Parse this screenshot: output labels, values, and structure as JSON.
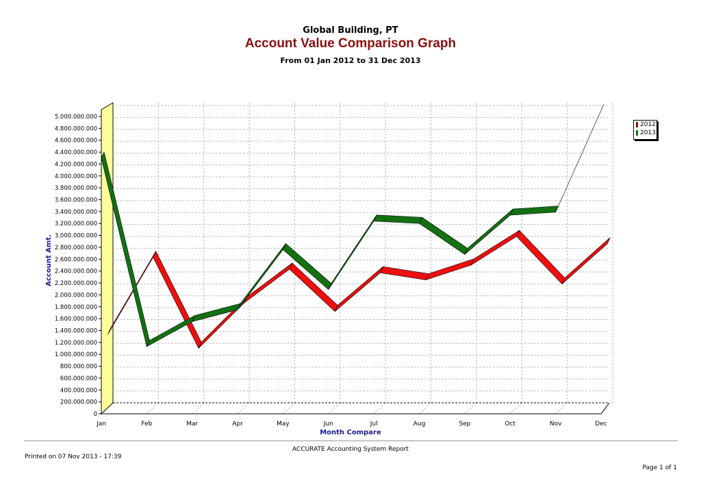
{
  "report": {
    "company": "Global Building, PT",
    "title": "Account Value Comparison Graph",
    "subtitle": "From 01 Jan 2012 to 31 Dec 2013",
    "footer_center": "ACCURATE Accounting System Report",
    "printed": "Printed on 07 Nov 2013 - 17:39",
    "page": "Page 1 of 1"
  },
  "chart_data": {
    "type": "line",
    "title": "Account Value Comparison Graph",
    "xlabel": "Month Compare",
    "ylabel": "Account Amt.",
    "categories": [
      "Jan",
      "Feb",
      "Mar",
      "Apr",
      "May",
      "Jun",
      "Jul",
      "Aug",
      "Sep",
      "Oct",
      "Nov",
      "Dec"
    ],
    "ylim": [
      0,
      5000000000
    ],
    "yticks": [
      0,
      200000000,
      400000000,
      600000000,
      800000000,
      1000000000,
      1200000000,
      1400000000,
      1600000000,
      1800000000,
      2000000000,
      2200000000,
      2400000000,
      2600000000,
      2800000000,
      3000000000,
      3200000000,
      3400000000,
      3600000000,
      3800000000,
      4000000000,
      4200000000,
      4400000000,
      4600000000,
      4800000000,
      5000000000
    ],
    "ytick_labels": [
      "0",
      "200.000.000",
      "400.000.000",
      "600.000.000",
      "800.000.000",
      "1.000.000.000",
      "1.200.000.000",
      "1.400.000.000",
      "1.600.000.000",
      "1.800.000.000",
      "2.000.000.000",
      "2.200.000.000",
      "2.400.000.000",
      "2.600.000.000",
      "2.800.000.000",
      "3.000.000.000",
      "3.200.000.000",
      "3.400.000.000",
      "3.600.000.000",
      "3.800.000.000",
      "4.000.000.000",
      "4.200.000.000",
      "4.400.000.000",
      "4.600.000.000",
      "4.800.000.000",
      "5.000.000.000"
    ],
    "series": [
      {
        "name": "2012",
        "color": "#ee0f0f",
        "legend_color": "#7f1010",
        "values": [
          1230000000,
          2530000000,
          1000000000,
          1760000000,
          2330000000,
          1620000000,
          2270000000,
          2150000000,
          2400000000,
          2880000000,
          2080000000,
          2760000000
        ]
      },
      {
        "name": "2013",
        "color": "#137013",
        "legend_color": "#137013",
        "values": [
          4300000000,
          1130000000,
          1550000000,
          1750000000,
          2760000000,
          2090000000,
          3240000000,
          3200000000,
          2680000000,
          3340000000,
          3390000000,
          5100000000
        ]
      }
    ],
    "grid": true,
    "legend": "right",
    "background_wall_color": "#ffff99"
  }
}
